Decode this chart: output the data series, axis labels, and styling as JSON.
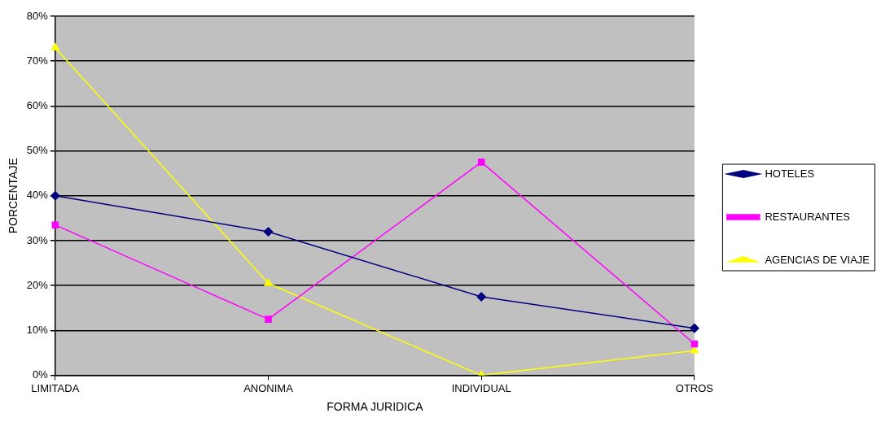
{
  "chart_data": {
    "type": "line",
    "xlabel": "FORMA JURIDICA",
    "ylabel": "PORCENTAJE",
    "categories": [
      "LIMITADA",
      "ANONIMA",
      "INDIVIDUAL",
      "OTROS"
    ],
    "series": [
      {
        "name": "HOTELES",
        "color": "#000080",
        "marker": "diamond",
        "values": [
          40,
          32,
          17.5,
          10.5
        ]
      },
      {
        "name": "RESTAURANTES",
        "color": "#ff00ff",
        "marker": "square",
        "values": [
          33.5,
          12.5,
          47.5,
          7
        ]
      },
      {
        "name": "AGENCIAS DE VIAJE",
        "color": "#ffff00",
        "marker": "triangle",
        "values": [
          73,
          20.5,
          0,
          5.5
        ]
      }
    ],
    "ylim": [
      0,
      80
    ],
    "yticks": [
      {
        "value": 0,
        "label": "0%"
      },
      {
        "value": 10,
        "label": "10%"
      },
      {
        "value": 20,
        "label": "20%"
      },
      {
        "value": 30,
        "label": "30%"
      },
      {
        "value": 40,
        "label": "40%"
      },
      {
        "value": 50,
        "label": "50%"
      },
      {
        "value": 60,
        "label": "60%"
      },
      {
        "value": 70,
        "label": "70%"
      },
      {
        "value": 80,
        "label": "80%"
      }
    ],
    "grid": "y",
    "legend": "right",
    "line_style": "solid"
  }
}
